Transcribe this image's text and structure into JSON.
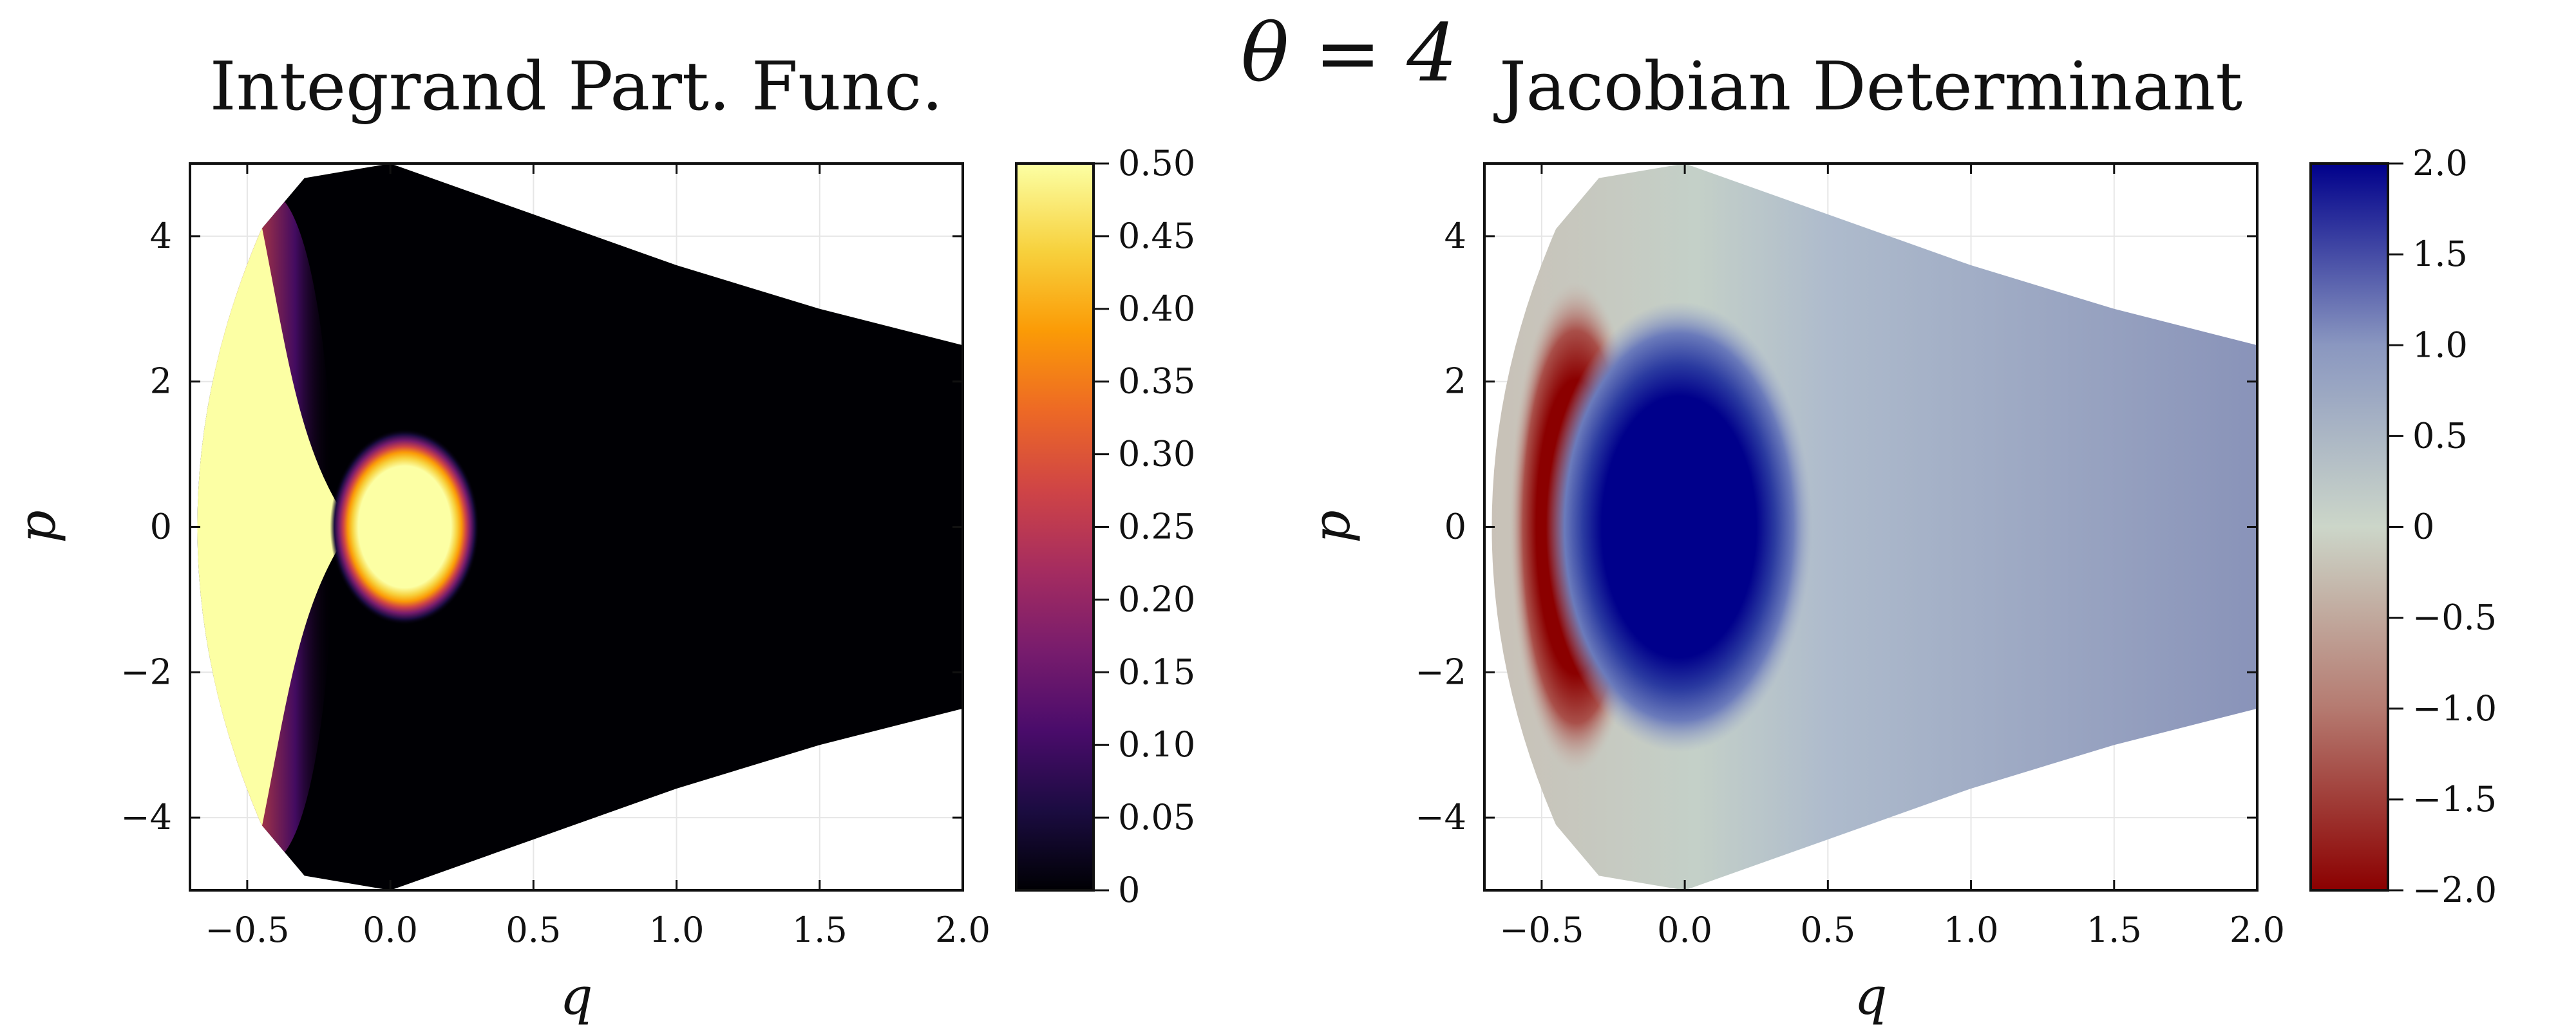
{
  "figure": {
    "suptitle": "θ = 4"
  },
  "chart_data": [
    {
      "type": "heatmap",
      "title": "Integrand Part. Func.",
      "xlabel": "q",
      "ylabel": "p",
      "xlim": [
        -0.7,
        2.0
      ],
      "ylim": [
        -5,
        5
      ],
      "xticks": [
        -0.5,
        0.0,
        0.5,
        1.0,
        1.5,
        2.0
      ],
      "xtick_labels": [
        "−0.5",
        "0.0",
        "0.5",
        "1.0",
        "1.5",
        "2.0"
      ],
      "yticks": [
        4,
        2,
        0,
        -2,
        -4
      ],
      "ytick_labels": [
        "4",
        "2",
        "0",
        "−2",
        "−4"
      ],
      "grid": true,
      "colormap": "inferno",
      "colormap_stops": [
        "#000004",
        "#1b0c41",
        "#4a0c6b",
        "#781c6d",
        "#a52c60",
        "#cf4446",
        "#ed6925",
        "#fb9b06",
        "#f7d13d",
        "#fcffa4"
      ],
      "clim": [
        0,
        0.5
      ],
      "colorbar_ticks": [
        0.5,
        0.45,
        0.4,
        0.35,
        0.3,
        0.25,
        0.2,
        0.15,
        0.1,
        0.05,
        0
      ],
      "colorbar_tick_labels": [
        "0.50",
        "0.45",
        "0.40",
        "0.35",
        "0.30",
        "0.25",
        "0.20",
        "0.15",
        "0.10",
        "0.05",
        "0"
      ],
      "domain": {
        "left_boundary": {
          "q_min": -0.68,
          "q_at_p5": -0.45
        },
        "top_curve": [
          [
            -0.45,
            4.1
          ],
          [
            -0.3,
            4.8
          ],
          [
            0.0,
            5.0
          ],
          [
            0.5,
            4.3
          ],
          [
            1.0,
            3.6
          ],
          [
            1.5,
            3.0
          ],
          [
            2.0,
            2.5
          ]
        ]
      },
      "features": {
        "saturated_left_region": {
          "value": 0.5,
          "q_range": [
            -0.68,
            -0.2
          ]
        },
        "central_blob": {
          "center": [
            0.05,
            0
          ],
          "q_radius": 0.18,
          "p_radius": 1.0,
          "value": 0.5
        },
        "background_value": 0.0
      }
    },
    {
      "type": "heatmap",
      "title": "Jacobian Determinant",
      "xlabel": "q",
      "ylabel": "p",
      "xlim": [
        -0.7,
        2.0
      ],
      "ylim": [
        -5,
        5
      ],
      "xticks": [
        -0.5,
        0.0,
        0.5,
        1.0,
        1.5,
        2.0
      ],
      "xtick_labels": [
        "−0.5",
        "0.0",
        "0.5",
        "1.0",
        "1.5",
        "2.0"
      ],
      "yticks": [
        4,
        2,
        0,
        -2,
        -4
      ],
      "ytick_labels": [
        "4",
        "2",
        "0",
        "−2",
        "−4"
      ],
      "grid": true,
      "colormap": "diverging red-blue",
      "colormap_stops": [
        "#8b0000",
        "#b57a70",
        "#ccd6c9",
        "#8a97c0",
        "#00008b"
      ],
      "clim": [
        -2.0,
        2.0
      ],
      "colorbar_ticks": [
        2.0,
        1.5,
        1.0,
        0.5,
        0,
        -0.5,
        -1.0,
        -1.5,
        -2.0
      ],
      "colorbar_tick_labels": [
        "2.0",
        "1.5",
        "1.0",
        "0.5",
        "0",
        "−0.5",
        "−1.0",
        "−1.5",
        "−2.0"
      ],
      "domain": {
        "left_boundary": {
          "q_min": -0.68,
          "q_at_p5": -0.45
        },
        "top_curve": [
          [
            -0.45,
            4.1
          ],
          [
            -0.3,
            4.8
          ],
          [
            0.0,
            5.0
          ],
          [
            0.5,
            4.3
          ],
          [
            1.0,
            3.6
          ],
          [
            1.5,
            3.0
          ],
          [
            2.0,
            2.5
          ]
        ]
      },
      "features": {
        "negative_region": {
          "center": [
            -0.38,
            0
          ],
          "q_radius": 0.16,
          "p_radius": 2.7,
          "value": -2.0
        },
        "positive_region": {
          "center": [
            -0.02,
            0
          ],
          "q_radius": 0.3,
          "p_radius": 2.0,
          "value": 2.0
        },
        "far_field_value": 0.9
      }
    }
  ]
}
